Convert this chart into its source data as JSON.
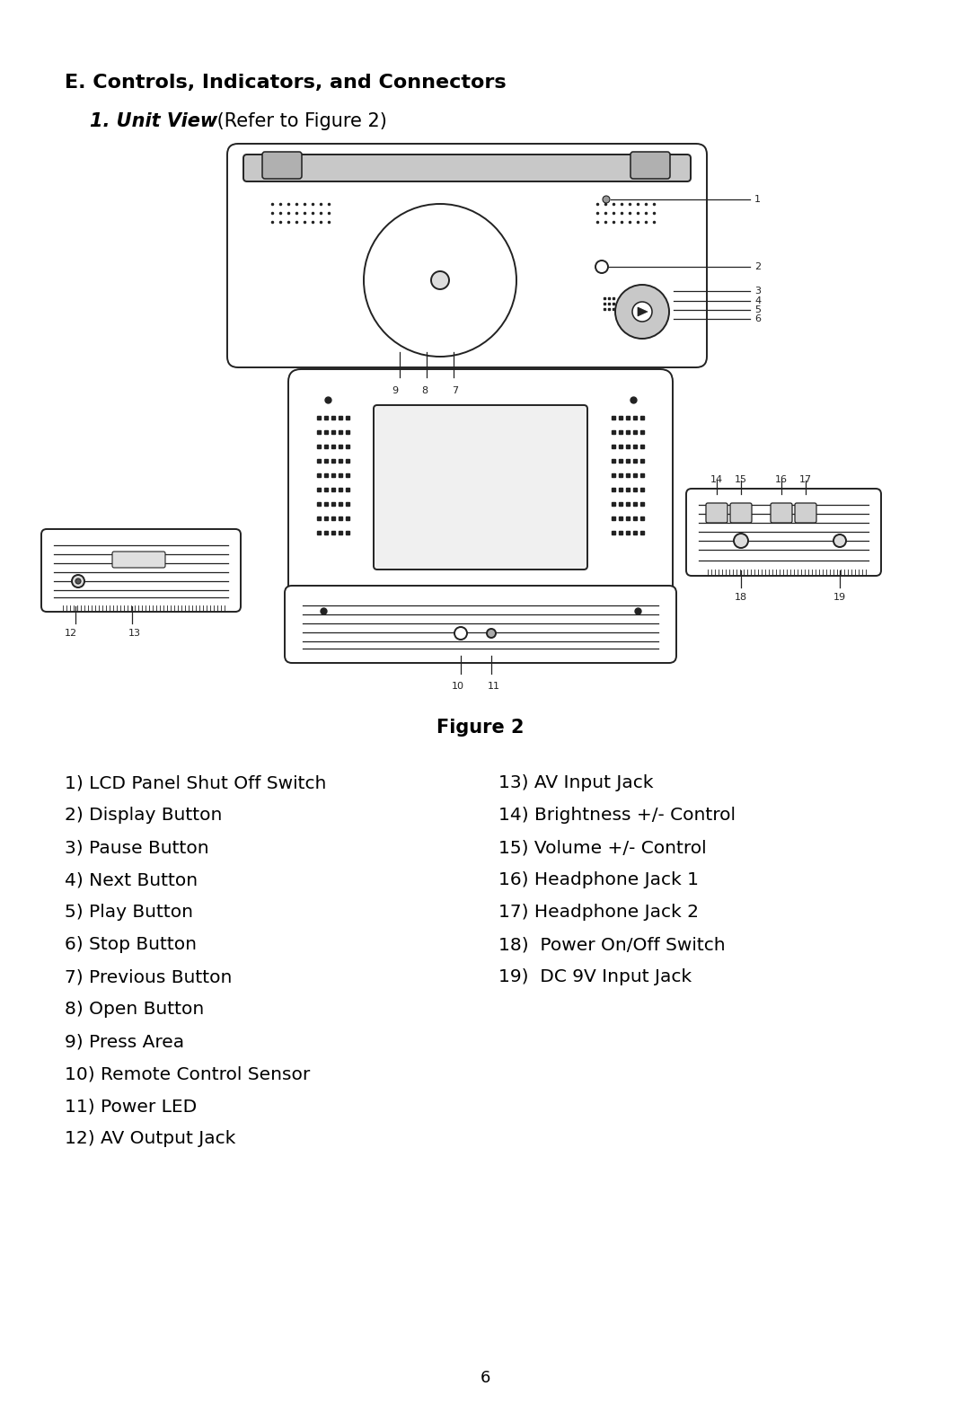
{
  "title": "E. Controls, Indicators, and Connectors",
  "subtitle_bold_italic": "1. Unit View",
  "subtitle_normal": " (Refer to Figure 2)",
  "figure_label": "Figure 2",
  "page_number": "6",
  "left_items": [
    "1) LCD Panel Shut Off Switch",
    "2) Display Button",
    "3) Pause Button",
    "4) Next Button",
    "5) Play Button",
    "6) Stop Button",
    "7) Previous Button",
    "8) Open Button",
    "9) Press Area",
    "10) Remote Control Sensor",
    "11) Power LED",
    "12) AV Output Jack"
  ],
  "right_items": [
    "13) AV Input Jack",
    "14) Brightness +/- Control",
    "15) Volume +/- Control",
    "16) Headphone Jack 1",
    "17) Headphone Jack 2",
    "18)  Power On/Off Switch",
    "19)  DC 9V Input Jack"
  ],
  "bg_color": "#ffffff",
  "text_color": "#000000",
  "title_fontsize": 16,
  "subtitle_fontsize": 15,
  "item_fontsize": 14.5,
  "figure_fontsize": 15
}
